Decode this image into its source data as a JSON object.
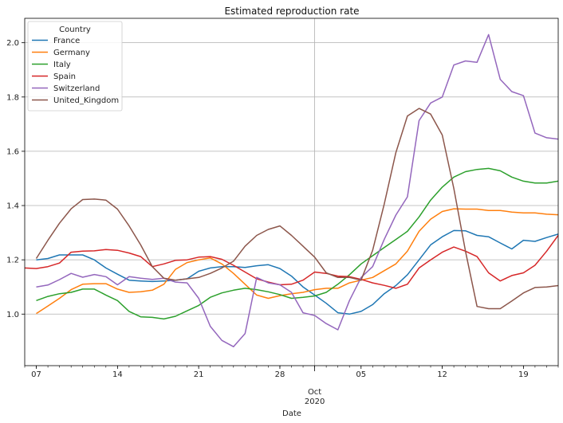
{
  "chart_data": {
    "type": "line",
    "title": "Estimated reproduction rate",
    "xlabel": "Date",
    "ylabel": "",
    "x_start": "2020-09-06",
    "x_end": "2020-10-22",
    "ylim": [
      0.81,
      2.09
    ],
    "yticks": [
      1.0,
      1.2,
      1.4,
      1.6,
      1.8,
      2.0
    ],
    "xticks": [
      {
        "x": "2020-09-07",
        "label": "07"
      },
      {
        "x": "2020-09-14",
        "label": "14"
      },
      {
        "x": "2020-09-21",
        "label": "21"
      },
      {
        "x": "2020-09-28",
        "label": "28"
      },
      {
        "x": "2020-10-05",
        "label": "05"
      },
      {
        "x": "2020-10-12",
        "label": "12"
      },
      {
        "x": "2020-10-19",
        "label": "19"
      }
    ],
    "major_x_tick": {
      "x": "2020-10-01",
      "label": "Oct",
      "sublabel": "2020"
    },
    "grid": true,
    "legend": {
      "title": "Country",
      "position": "top-left"
    },
    "series": [
      {
        "name": "France",
        "color": "#1f77b4",
        "x_first": "2020-09-07",
        "values": [
          1.2,
          1.205,
          1.218,
          1.218,
          1.218,
          1.2,
          1.17,
          1.147,
          1.125,
          1.122,
          1.12,
          1.122,
          1.125,
          1.13,
          1.158,
          1.17,
          1.175,
          1.175,
          1.172,
          1.178,
          1.182,
          1.168,
          1.14,
          1.1,
          1.07,
          1.04,
          1.005,
          1.0,
          1.01,
          1.035,
          1.075,
          1.105,
          1.145,
          1.2,
          1.255,
          1.285,
          1.308,
          1.307,
          1.29,
          1.285,
          1.262,
          1.24,
          1.272,
          1.268,
          1.282,
          1.295,
          1.29
        ]
      },
      {
        "name": "Germany",
        "color": "#ff7f0e",
        "x_first": "2020-09-07",
        "values": [
          1.002,
          1.03,
          1.058,
          1.09,
          1.11,
          1.112,
          1.112,
          1.092,
          1.08,
          1.082,
          1.088,
          1.11,
          1.165,
          1.19,
          1.2,
          1.207,
          1.185,
          1.15,
          1.11,
          1.07,
          1.058,
          1.068,
          1.075,
          1.08,
          1.09,
          1.095,
          1.095,
          1.115,
          1.125,
          1.135,
          1.16,
          1.185,
          1.232,
          1.305,
          1.35,
          1.378,
          1.388,
          1.387,
          1.387,
          1.382,
          1.382,
          1.376,
          1.373,
          1.373,
          1.368,
          1.366,
          1.36
        ]
      },
      {
        "name": "Italy",
        "color": "#2ca02c",
        "x_first": "2020-09-07",
        "values": [
          1.05,
          1.065,
          1.075,
          1.08,
          1.092,
          1.092,
          1.07,
          1.05,
          1.01,
          0.99,
          0.988,
          0.982,
          0.992,
          1.012,
          1.032,
          1.062,
          1.078,
          1.088,
          1.095,
          1.09,
          1.082,
          1.072,
          1.058,
          1.062,
          1.067,
          1.08,
          1.11,
          1.145,
          1.185,
          1.215,
          1.245,
          1.275,
          1.305,
          1.358,
          1.42,
          1.468,
          1.505,
          1.525,
          1.533,
          1.537,
          1.528,
          1.505,
          1.49,
          1.483,
          1.483,
          1.49,
          1.488
        ]
      },
      {
        "name": "Spain",
        "color": "#d62728",
        "x_first": "2020-09-06",
        "values": [
          1.17,
          1.168,
          1.175,
          1.188,
          1.228,
          1.232,
          1.233,
          1.238,
          1.235,
          1.225,
          1.212,
          1.175,
          1.185,
          1.198,
          1.2,
          1.21,
          1.212,
          1.202,
          1.18,
          1.155,
          1.13,
          1.118,
          1.108,
          1.11,
          1.125,
          1.155,
          1.15,
          1.14,
          1.138,
          1.128,
          1.115,
          1.106,
          1.095,
          1.11,
          1.17,
          1.2,
          1.228,
          1.247,
          1.232,
          1.212,
          1.152,
          1.122,
          1.142,
          1.152,
          1.18,
          1.232,
          1.29,
          1.392
        ]
      },
      {
        "name": "Switzerland",
        "color": "#9467bd",
        "x_first": "2020-09-07",
        "values": [
          1.1,
          1.107,
          1.127,
          1.15,
          1.136,
          1.146,
          1.138,
          1.108,
          1.138,
          1.132,
          1.128,
          1.132,
          1.118,
          1.115,
          1.058,
          0.955,
          0.903,
          0.88,
          0.928,
          1.135,
          1.115,
          1.108,
          1.08,
          1.005,
          0.995,
          0.965,
          0.942,
          1.05,
          1.135,
          1.175,
          1.275,
          1.365,
          1.432,
          1.713,
          1.778,
          1.8,
          1.918,
          1.933,
          1.928,
          2.03,
          1.865,
          1.82,
          1.805,
          1.667,
          1.65,
          1.645,
          1.622,
          1.745
        ]
      },
      {
        "name": "United_Kingdom",
        "color": "#8c564b",
        "x_first": "2020-09-07",
        "values": [
          1.205,
          1.272,
          1.335,
          1.388,
          1.422,
          1.424,
          1.42,
          1.387,
          1.325,
          1.255,
          1.175,
          1.132,
          1.125,
          1.13,
          1.135,
          1.15,
          1.17,
          1.195,
          1.25,
          1.29,
          1.312,
          1.325,
          1.29,
          1.25,
          1.21,
          1.152,
          1.135,
          1.135,
          1.125,
          1.235,
          1.405,
          1.595,
          1.73,
          1.758,
          1.737,
          1.66,
          1.463,
          1.232,
          1.028,
          1.02,
          1.02,
          1.048,
          1.078,
          1.098,
          1.1,
          1.105,
          1.126,
          1.143
        ]
      }
    ]
  }
}
